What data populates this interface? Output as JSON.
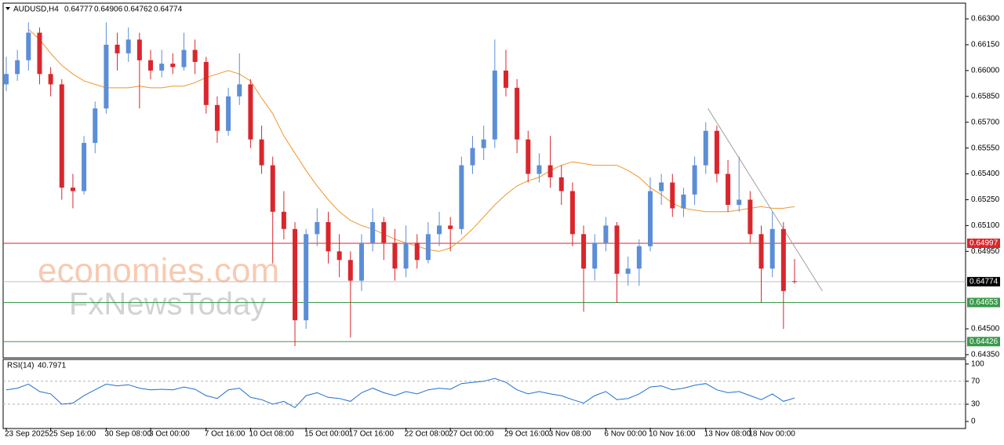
{
  "chart_data": {
    "type": "candlestick",
    "title": "AUDUSD,H4",
    "up_color": "#5b8ed6",
    "down_color": "#d9262c",
    "categories": [
      "23 Sep 2025",
      null,
      null,
      null,
      "25 Sep 16:00",
      null,
      null,
      null,
      null,
      "30 Sep 08:00",
      null,
      null,
      null,
      "3 Oct 00:00",
      null,
      null,
      null,
      null,
      "7 Oct 16:00",
      null,
      null,
      null,
      "10 Oct 08:00",
      null,
      null,
      null,
      null,
      "15 Oct 00:00",
      null,
      null,
      null,
      "17 Oct 16:00",
      null,
      null,
      null,
      null,
      "22 Oct 08:00",
      null,
      null,
      null,
      "27 Oct 00:00",
      null,
      null,
      null,
      null,
      "29 Oct 16:00",
      null,
      null,
      null,
      "3 Nov 08:00",
      null,
      null,
      null,
      null,
      "6 Nov 00:00",
      null,
      null,
      null,
      "10 Nov 16:00",
      null,
      null,
      null,
      null,
      "13 Nov 08:00",
      null,
      null,
      null,
      "18 Nov 00:00",
      null,
      null,
      null,
      null
    ],
    "candles": [
      [
        0.6592,
        0.6608,
        0.6588,
        0.6598
      ],
      [
        0.6598,
        0.6612,
        0.6594,
        0.6606
      ],
      [
        0.6606,
        0.6628,
        0.66,
        0.6622
      ],
      [
        0.6622,
        0.6625,
        0.6592,
        0.6598
      ],
      [
        0.6598,
        0.6602,
        0.6585,
        0.6592
      ],
      [
        0.6592,
        0.6595,
        0.6525,
        0.6532
      ],
      [
        0.6532,
        0.654,
        0.652,
        0.653
      ],
      [
        0.653,
        0.6562,
        0.6528,
        0.6558
      ],
      [
        0.6558,
        0.6582,
        0.6552,
        0.6578
      ],
      [
        0.6578,
        0.6628,
        0.6575,
        0.6615
      ],
      [
        0.6615,
        0.6622,
        0.66,
        0.661
      ],
      [
        0.661,
        0.6625,
        0.6605,
        0.6618
      ],
      [
        0.6618,
        0.6622,
        0.6578,
        0.6606
      ],
      [
        0.6606,
        0.6612,
        0.6595,
        0.66
      ],
      [
        0.66,
        0.6612,
        0.6596,
        0.6604
      ],
      [
        0.6604,
        0.661,
        0.6598,
        0.6602
      ],
      [
        0.6602,
        0.6622,
        0.66,
        0.6612
      ],
      [
        0.6612,
        0.6618,
        0.6598,
        0.6605
      ],
      [
        0.6605,
        0.6608,
        0.6575,
        0.658
      ],
      [
        0.658,
        0.6585,
        0.6558,
        0.6565
      ],
      [
        0.6565,
        0.659,
        0.6562,
        0.6585
      ],
      [
        0.6585,
        0.661,
        0.658,
        0.6592
      ],
      [
        0.6592,
        0.6595,
        0.6555,
        0.656
      ],
      [
        0.656,
        0.6568,
        0.654,
        0.6545
      ],
      [
        0.6545,
        0.655,
        0.6488,
        0.6518
      ],
      [
        0.6518,
        0.653,
        0.6502,
        0.6508
      ],
      [
        0.6508,
        0.6512,
        0.644,
        0.6455
      ],
      [
        0.6455,
        0.6508,
        0.645,
        0.6505
      ],
      [
        0.6505,
        0.652,
        0.6498,
        0.6512
      ],
      [
        0.6512,
        0.6518,
        0.6488,
        0.6495
      ],
      [
        0.6495,
        0.6505,
        0.648,
        0.649
      ],
      [
        0.649,
        0.6495,
        0.6445,
        0.6478
      ],
      [
        0.6478,
        0.6505,
        0.6472,
        0.65
      ],
      [
        0.65,
        0.652,
        0.6495,
        0.6512
      ],
      [
        0.6512,
        0.6515,
        0.649,
        0.65
      ],
      [
        0.65,
        0.6508,
        0.6478,
        0.6485
      ],
      [
        0.6485,
        0.651,
        0.648,
        0.65
      ],
      [
        0.65,
        0.6505,
        0.6485,
        0.649
      ],
      [
        0.649,
        0.6512,
        0.6488,
        0.6505
      ],
      [
        0.6505,
        0.6518,
        0.6498,
        0.651
      ],
      [
        0.651,
        0.6515,
        0.6495,
        0.6508
      ],
      [
        0.6508,
        0.655,
        0.6505,
        0.6545
      ],
      [
        0.6545,
        0.6562,
        0.654,
        0.6555
      ],
      [
        0.6555,
        0.6568,
        0.6548,
        0.656
      ],
      [
        0.656,
        0.6618,
        0.6555,
        0.66
      ],
      [
        0.66,
        0.6612,
        0.6585,
        0.659
      ],
      [
        0.659,
        0.6595,
        0.6552,
        0.656
      ],
      [
        0.656,
        0.6565,
        0.6535,
        0.654
      ],
      [
        0.654,
        0.6552,
        0.6535,
        0.6545
      ],
      [
        0.6545,
        0.6562,
        0.6532,
        0.6538
      ],
      [
        0.6538,
        0.6545,
        0.6522,
        0.653
      ],
      [
        0.653,
        0.6535,
        0.6498,
        0.6505
      ],
      [
        0.6505,
        0.651,
        0.646,
        0.6485
      ],
      [
        0.6485,
        0.6505,
        0.6478,
        0.65
      ],
      [
        0.65,
        0.6515,
        0.6495,
        0.651
      ],
      [
        0.651,
        0.6512,
        0.6465,
        0.6482
      ],
      [
        0.6482,
        0.6492,
        0.6475,
        0.6485
      ],
      [
        0.6485,
        0.6502,
        0.6475,
        0.6498
      ],
      [
        0.6498,
        0.6538,
        0.6495,
        0.653
      ],
      [
        0.653,
        0.654,
        0.6522,
        0.6535
      ],
      [
        0.6535,
        0.654,
        0.6515,
        0.652
      ],
      [
        0.652,
        0.6532,
        0.6515,
        0.6528
      ],
      [
        0.6528,
        0.655,
        0.6522,
        0.6545
      ],
      [
        0.6545,
        0.657,
        0.654,
        0.6565
      ],
      [
        0.6565,
        0.6568,
        0.6535,
        0.654
      ],
      [
        0.654,
        0.6548,
        0.6518,
        0.6522
      ],
      [
        0.6522,
        0.655,
        0.6518,
        0.6525
      ],
      [
        0.6525,
        0.653,
        0.65,
        0.6505
      ],
      [
        0.6505,
        0.651,
        0.6465,
        0.6485
      ],
      [
        0.6485,
        0.6518,
        0.648,
        0.6508
      ],
      [
        0.6508,
        0.6512,
        0.645,
        0.6472
      ],
      [
        0.64777,
        0.64906,
        0.64762,
        0.64774
      ]
    ],
    "moving_average": {
      "color": "#f0962a",
      "values": [
        null,
        null,
        0.6624,
        0.6618,
        0.661,
        0.6603,
        0.6598,
        0.6594,
        0.6592,
        0.659,
        0.659,
        0.659,
        0.6591,
        0.659,
        0.659,
        0.6591,
        0.6591,
        0.6593,
        0.6596,
        0.6598,
        0.66,
        0.6598,
        0.6594,
        0.6584,
        0.6575,
        0.6562,
        0.6552,
        0.6542,
        0.6533,
        0.6525,
        0.6518,
        0.6513,
        0.651,
        0.6508,
        0.6505,
        0.6502,
        0.65,
        0.6498,
        0.6496,
        0.6495,
        0.6497,
        0.6502,
        0.6508,
        0.6515,
        0.6522,
        0.6528,
        0.6533,
        0.6536,
        0.6538,
        0.6542,
        0.6545,
        0.6547,
        0.6546,
        0.6545,
        0.6545,
        0.6545,
        0.6542,
        0.6538,
        0.6532,
        0.6528,
        0.6523,
        0.652,
        0.6519,
        0.6518,
        0.6518,
        0.6518,
        0.6519,
        0.652,
        0.6521,
        0.652,
        0.652,
        0.6521
      ]
    },
    "trendline": {
      "color": "#a0a0a0",
      "x": [
        63.2,
        73.5
      ],
      "y": [
        0.6578,
        0.6472
      ]
    },
    "levels": [
      {
        "value": 0.64997,
        "color": "#d9262c"
      },
      {
        "value": 0.64774,
        "color": "#000000"
      },
      {
        "value": 0.64653,
        "color": "#3a9a4a"
      },
      {
        "value": 0.64426,
        "color": "#3a9a4a"
      }
    ],
    "ylim": [
      0.64336,
      0.66387
    ],
    "yticks": [
      {
        "value": 0.663,
        "label": "0.66300"
      },
      {
        "value": 0.6615,
        "label": "0.66150"
      },
      {
        "value": 0.66,
        "label": "0.66000"
      },
      {
        "value": 0.6585,
        "label": "0.65850"
      },
      {
        "value": 0.657,
        "label": "0.65700"
      },
      {
        "value": 0.6555,
        "label": "0.65550"
      },
      {
        "value": 0.654,
        "label": "0.65400"
      },
      {
        "value": 0.6525,
        "label": "0.65250"
      },
      {
        "value": 0.651,
        "label": "0.65100"
      },
      {
        "value": 0.6495,
        "label": "0.64950"
      },
      {
        "value": 0.645,
        "label": "0.64500"
      },
      {
        "value": 0.6435,
        "label": "0.64350"
      }
    ],
    "rsi": {
      "label": "RSI(14)",
      "color": "#1e6fd0",
      "ylim": [
        -11,
        108
      ],
      "yticks": [
        100,
        70,
        30,
        0
      ],
      "levels": [
        70,
        30
      ],
      "values": [
        55,
        58,
        65,
        52,
        48,
        30,
        32,
        45,
        55,
        65,
        62,
        64,
        58,
        55,
        56,
        55,
        60,
        56,
        45,
        40,
        55,
        58,
        42,
        38,
        30,
        35,
        24,
        45,
        50,
        42,
        40,
        35,
        50,
        58,
        50,
        45,
        52,
        48,
        55,
        58,
        56,
        66,
        68,
        70,
        75,
        68,
        55,
        48,
        52,
        48,
        45,
        38,
        32,
        45,
        52,
        38,
        40,
        48,
        60,
        62,
        55,
        58,
        63,
        66,
        55,
        50,
        52,
        45,
        38,
        48,
        35,
        40.7971
      ]
    },
    "watermark": [
      "economies.com",
      "FxNewsToday"
    ]
  }
}
